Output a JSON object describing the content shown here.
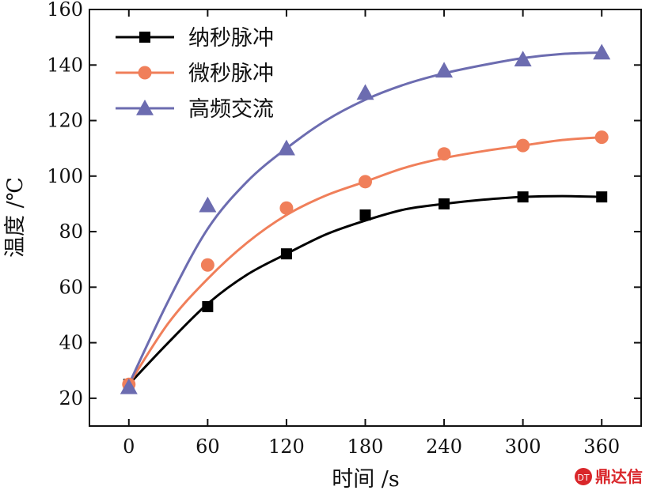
{
  "chart_data": {
    "type": "line",
    "xlabel": "时间 /s",
    "ylabel": "温度 /℃",
    "xlim": [
      -30,
      390
    ],
    "ylim": [
      10,
      160
    ],
    "xticks": [
      0,
      60,
      120,
      180,
      240,
      300,
      360
    ],
    "yticks": [
      20,
      40,
      60,
      80,
      100,
      120,
      140,
      160
    ],
    "grid": false,
    "legend_position": "top-left",
    "series": [
      {
        "name": "纳秒脉冲",
        "marker": "square",
        "color": "#000000",
        "x": [
          0,
          60,
          120,
          180,
          240,
          300,
          360
        ],
        "y": [
          25,
          53,
          72,
          86,
          90,
          92.5,
          92.5
        ],
        "fit": [
          [
            0,
            25
          ],
          [
            30,
            40
          ],
          [
            60,
            54
          ],
          [
            90,
            64.5
          ],
          [
            120,
            72
          ],
          [
            150,
            79
          ],
          [
            180,
            84
          ],
          [
            210,
            88
          ],
          [
            240,
            90
          ],
          [
            270,
            91.5
          ],
          [
            300,
            92.5
          ],
          [
            330,
            92.8
          ],
          [
            360,
            92.5
          ]
        ]
      },
      {
        "name": "微秒脉冲",
        "marker": "circle",
        "color": "#f07f5a",
        "x": [
          0,
          60,
          120,
          180,
          240,
          300,
          360
        ],
        "y": [
          25,
          68,
          88.5,
          98,
          108,
          111,
          114
        ],
        "fit": [
          [
            0,
            25
          ],
          [
            30,
            47
          ],
          [
            60,
            63
          ],
          [
            90,
            76
          ],
          [
            120,
            86
          ],
          [
            150,
            93
          ],
          [
            180,
            98
          ],
          [
            210,
            103
          ],
          [
            240,
            106.5
          ],
          [
            270,
            109
          ],
          [
            300,
            111
          ],
          [
            330,
            113
          ],
          [
            360,
            114
          ]
        ]
      },
      {
        "name": "高频交流",
        "marker": "triangle",
        "color": "#6c6cb0",
        "x": [
          0,
          60,
          120,
          180,
          240,
          300,
          360
        ],
        "y": [
          24,
          89.5,
          110,
          130,
          138,
          142,
          144.5
        ],
        "fit": [
          [
            0,
            25
          ],
          [
            30,
            55
          ],
          [
            60,
            81
          ],
          [
            90,
            98
          ],
          [
            120,
            110
          ],
          [
            150,
            120
          ],
          [
            180,
            127.5
          ],
          [
            210,
            133
          ],
          [
            240,
            137
          ],
          [
            270,
            140
          ],
          [
            300,
            142.5
          ],
          [
            330,
            144
          ],
          [
            360,
            144.5
          ]
        ]
      }
    ]
  },
  "watermark": {
    "text": "鼎达信",
    "seal_text": "DT"
  }
}
